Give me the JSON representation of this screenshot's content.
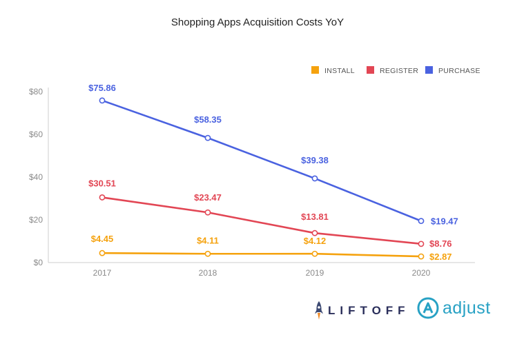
{
  "title": "Shopping Apps Acquisition Costs YoY",
  "colors": {
    "install": "#F5A20E",
    "register": "#E24654",
    "purchase": "#4A62E0",
    "axis": "#cccccc",
    "tick": "#8a8a8a"
  },
  "chart_data": {
    "type": "line",
    "title": "Shopping Apps Acquisition Costs YoY",
    "xlabel": "",
    "ylabel": "",
    "x": [
      "2017",
      "2018",
      "2019",
      "2020"
    ],
    "ylim": [
      0,
      80
    ],
    "yticks": [
      0,
      20,
      40,
      60,
      80
    ],
    "ytick_labels": [
      "$0",
      "$20",
      "$40",
      "$60",
      "$80"
    ],
    "grid": false,
    "legend_position": "top-right",
    "series": [
      {
        "name": "INSTALL",
        "key": "install",
        "values": [
          4.45,
          4.11,
          4.12,
          2.87
        ],
        "labels": [
          "$4.45",
          "$4.11",
          "$4.12",
          "$2.87"
        ]
      },
      {
        "name": "REGISTER",
        "key": "register",
        "values": [
          30.51,
          23.47,
          13.81,
          8.76
        ],
        "labels": [
          "$30.51",
          "$23.47",
          "$13.81",
          "$8.76"
        ]
      },
      {
        "name": "PURCHASE",
        "key": "purchase",
        "values": [
          75.86,
          58.35,
          39.38,
          19.47
        ],
        "labels": [
          "$75.86",
          "$58.35",
          "$39.38",
          "$19.47"
        ]
      }
    ]
  },
  "logos": {
    "liftoff": "LIFTOFF",
    "adjust": "adjust",
    "liftoff_icon": "rocket-icon",
    "adjust_icon": "adjust-a-icon"
  }
}
